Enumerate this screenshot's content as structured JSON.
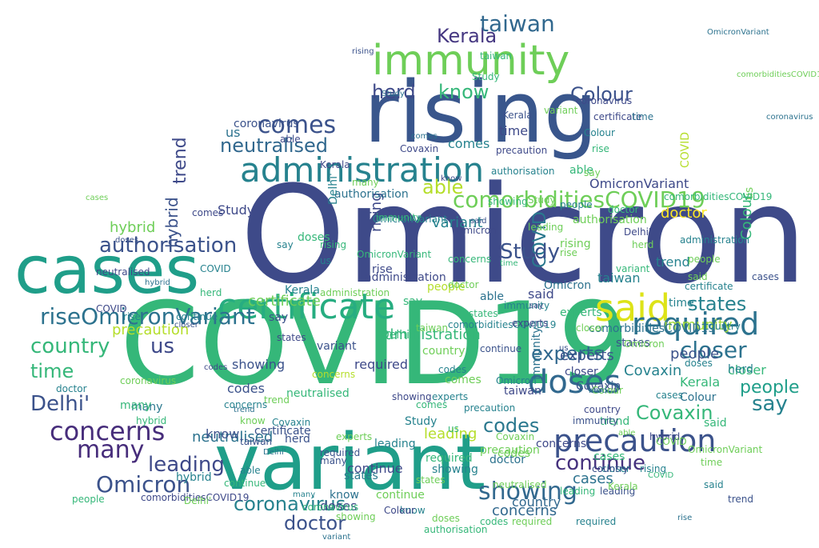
{
  "words": [
    {
      "text": "Omicron",
      "color": "#3e4a89"
    },
    {
      "text": "COVID19",
      "color": "#35b779"
    },
    {
      "text": "variant",
      "color": "#1f9e89"
    },
    {
      "text": "rising",
      "color": "#39568c"
    },
    {
      "text": "cases",
      "color": "#1f9e89"
    },
    {
      "text": "immunity",
      "color": "#6ece58"
    },
    {
      "text": "administration",
      "color": "#26828e"
    },
    {
      "text": "certificate",
      "color": "#27ad81"
    },
    {
      "text": "said",
      "color": "#dde318"
    },
    {
      "text": "precaution",
      "color": "#3b528b"
    },
    {
      "text": "required",
      "color": "#2c728e"
    },
    {
      "text": "doses",
      "color": "#31688e"
    },
    {
      "text": "closer",
      "color": "#2c728e"
    },
    {
      "text": "comorbiditiesCOVID19",
      "color": "#6ece58"
    },
    {
      "text": "riseOmicronVariant",
      "color": "#2c728e"
    },
    {
      "text": "authorisation",
      "color": "#3b528b"
    },
    {
      "text": "neutralised",
      "color": "#31688e"
    },
    {
      "text": "comes",
      "color": "#3b528b"
    },
    {
      "text": "herd",
      "color": "#3e4989"
    },
    {
      "text": "know",
      "color": "#35b779"
    },
    {
      "text": "Kerala",
      "color": "#453781"
    },
    {
      "text": "taiwan",
      "color": "#31688e"
    },
    {
      "text": "Colour",
      "color": "#3b528b"
    },
    {
      "text": "concerns",
      "color": "#472d7b"
    },
    {
      "text": "Delhi'",
      "color": "#3b528b"
    },
    {
      "text": "many",
      "color": "#472d7b"
    },
    {
      "text": "leading",
      "color": "#3e4989"
    },
    {
      "text": "Omicron",
      "color": "#3b528b"
    },
    {
      "text": "coronavirus",
      "color": "#26828e"
    },
    {
      "text": "doctor",
      "color": "#3b528b"
    },
    {
      "text": "showing",
      "color": "#31688e"
    },
    {
      "text": "continue",
      "color": "#46327e"
    },
    {
      "text": "Covaxin",
      "color": "#35b779"
    },
    {
      "text": "say",
      "color": "#26828e"
    },
    {
      "text": "people",
      "color": "#1f9e89"
    },
    {
      "text": "states",
      "color": "#26828e"
    },
    {
      "text": "experts",
      "color": "#31688e"
    },
    {
      "text": "country",
      "color": "#35b779"
    },
    {
      "text": "time",
      "color": "#35b779"
    },
    {
      "text": "codes",
      "color": "#2a788e"
    },
    {
      "text": "trend",
      "color": "#3e4989"
    },
    {
      "text": "COVID",
      "color": "#2a788e"
    },
    {
      "text": "able",
      "color": "#b5de2b"
    },
    {
      "text": "hybrid",
      "color": "#3b528b"
    },
    {
      "text": "us",
      "color": "#3e4989"
    },
    {
      "text": "Study",
      "color": "#3b528b"
    },
    {
      "text": "precaution",
      "color": "#b5de2b"
    },
    {
      "text": "neutralised",
      "color": "#2c728e"
    },
    {
      "text": "immunity",
      "color": "#a0da39"
    },
    {
      "text": "concerns",
      "color": "#31688e"
    },
    {
      "text": "Covaxin",
      "color": "#26828e"
    },
    {
      "text": "experts",
      "color": "#3b528b"
    },
    {
      "text": "cases",
      "color": "#2c728e"
    },
    {
      "text": "administration",
      "color": "#35b779"
    },
    {
      "text": "certificate",
      "color": "#6ece58"
    },
    {
      "text": "comorbiditiesCOVID19",
      "color": "#2c728e"
    },
    {
      "text": "OmicronVariant",
      "color": "#3e4989"
    },
    {
      "text": "authorisation",
      "color": "#6ece58"
    },
    {
      "text": "required",
      "color": "#3e4989"
    },
    {
      "text": "showing",
      "color": "#3b528b"
    },
    {
      "text": "taiwan",
      "color": "#26828e"
    },
    {
      "text": "Kerala",
      "color": "#35b779"
    },
    {
      "text": "leading",
      "color": "#b5de2b"
    },
    {
      "text": "continue",
      "color": "#3e4989"
    },
    {
      "text": "country",
      "color": "#31688e"
    },
    {
      "text": "Colour",
      "color": "#35b779"
    },
    {
      "text": "people",
      "color": "#3b528b"
    },
    {
      "text": "doctor",
      "color": "#fde725"
    },
    {
      "text": "variant",
      "color": "#26828e"
    },
    {
      "text": "rising",
      "color": "#3e4989"
    },
    {
      "text": "hybrid",
      "color": "#6ece58"
    },
    {
      "text": "states",
      "color": "#2a788e"
    },
    {
      "text": "closer",
      "color": "#35b779"
    },
    {
      "text": "doses",
      "color": "#3e4989"
    },
    {
      "text": "Delhi'",
      "color": "#35b779"
    },
    {
      "text": "many",
      "color": "#2a788e"
    },
    {
      "text": "codes",
      "color": "#3b528b"
    },
    {
      "text": "trend",
      "color": "#26828e"
    },
    {
      "text": "Study",
      "color": "#3e4989"
    },
    {
      "text": "said",
      "color": "#3e4989"
    },
    {
      "text": "know",
      "color": "#3b528b"
    },
    {
      "text": "comes",
      "color": "#26828e"
    },
    {
      "text": "time",
      "color": "#3e4989"
    },
    {
      "text": "us",
      "color": "#2c728e"
    },
    {
      "text": "say",
      "color": "#3b528b"
    },
    {
      "text": "herd",
      "color": "#26828e"
    },
    {
      "text": "able",
      "color": "#35b779"
    },
    {
      "text": "COVID",
      "color": "#b5de2b"
    },
    {
      "text": "rise",
      "color": "#3e4989"
    },
    {
      "text": "coronavirus",
      "color": "#3b528b"
    },
    {
      "text": "neutralised",
      "color": "#35b779"
    },
    {
      "text": "authorisation",
      "color": "#2c728e"
    },
    {
      "text": "precaution",
      "color": "#6ece58"
    },
    {
      "text": "concerns",
      "color": "#3e4989"
    },
    {
      "text": "immunity",
      "color": "#2c728e"
    },
    {
      "text": "experts",
      "color": "#35b779"
    },
    {
      "text": "Omicron",
      "color": "#2c728e"
    },
    {
      "text": "administration",
      "color": "#3e4989"
    },
    {
      "text": "Covaxin",
      "color": "#3b528b"
    },
    {
      "text": "leading",
      "color": "#26828e"
    },
    {
      "text": "required",
      "color": "#35b779"
    },
    {
      "text": "certificate",
      "color": "#3b528b"
    },
    {
      "text": "continue",
      "color": "#6ece58"
    },
    {
      "text": "showing",
      "color": "#26828e"
    },
    {
      "text": "country",
      "color": "#6ece58"
    },
    {
      "text": "taiwan",
      "color": "#3e4989"
    },
    {
      "text": "people",
      "color": "#b5de2b"
    },
    {
      "text": "Colour",
      "color": "#2c728e"
    },
    {
      "text": "Kerala",
      "color": "#26828e"
    },
    {
      "text": "doctor",
      "color": "#2c728e"
    },
    {
      "text": "states",
      "color": "#3b528b"
    },
    {
      "text": "cases",
      "color": "#35b779"
    },
    {
      "text": "hybrid",
      "color": "#26828e"
    },
    {
      "text": "doses",
      "color": "#35b779"
    },
    {
      "text": "closer",
      "color": "#3e4989"
    },
    {
      "text": "codes",
      "color": "#6ece58"
    },
    {
      "text": "trend",
      "color": "#35b779"
    },
    {
      "text": "many",
      "color": "#35b779"
    },
    {
      "text": "Delhi'",
      "color": "#26828e"
    },
    {
      "text": "rising",
      "color": "#6ece58"
    },
    {
      "text": "variant",
      "color": "#3b528b"
    },
    {
      "text": "Study",
      "color": "#26828e"
    },
    {
      "text": "comes",
      "color": "#6ece58"
    },
    {
      "text": "know",
      "color": "#2c728e"
    },
    {
      "text": "said",
      "color": "#35b779"
    },
    {
      "text": "time",
      "color": "#26828e"
    },
    {
      "text": "say",
      "color": "#35b779"
    },
    {
      "text": "us",
      "color": "#6ece58"
    },
    {
      "text": "herd",
      "color": "#3b528b"
    },
    {
      "text": "able",
      "color": "#2c728e"
    },
    {
      "text": "COVID",
      "color": "#3e4989"
    },
    {
      "text": "rise",
      "color": "#26828e"
    },
    {
      "text": "OmicronVariant",
      "color": "#26828e"
    },
    {
      "text": "comorbiditiesCOVID19",
      "color": "#3e4989"
    },
    {
      "text": "coronavirus",
      "color": "#35b779"
    },
    {
      "text": "authorisation",
      "color": "#26828e"
    },
    {
      "text": "neutralised",
      "color": "#6ece58"
    },
    {
      "text": "precaution",
      "color": "#3e4989"
    },
    {
      "text": "administration",
      "color": "#26828e"
    },
    {
      "text": "certificate",
      "color": "#26828e"
    },
    {
      "text": "immunity",
      "color": "#3b528b"
    },
    {
      "text": "concerns",
      "color": "#b5de2b"
    },
    {
      "text": "experts",
      "color": "#26828e"
    },
    {
      "text": "Covaxin",
      "color": "#6ece58"
    },
    {
      "text": "Omicron",
      "color": "#6ece58"
    },
    {
      "text": "required",
      "color": "#26828e"
    },
    {
      "text": "leading",
      "color": "#3b528b"
    },
    {
      "text": "continue",
      "color": "#35b779"
    },
    {
      "text": "showing",
      "color": "#6ece58"
    },
    {
      "text": "country",
      "color": "#3e4989"
    },
    {
      "text": "Kerala",
      "color": "#3b528b"
    },
    {
      "text": "taiwan",
      "color": "#35b779"
    },
    {
      "text": "people",
      "color": "#26828e"
    },
    {
      "text": "Colour",
      "color": "#6ece58"
    },
    {
      "text": "doctor",
      "color": "#35b779"
    },
    {
      "text": "states",
      "color": "#6ece58"
    },
    {
      "text": "cases",
      "color": "#3b528b"
    },
    {
      "text": "doses",
      "color": "#26828e"
    },
    {
      "text": "hybrid",
      "color": "#3e4989"
    },
    {
      "text": "closer",
      "color": "#26828e"
    },
    {
      "text": "codes",
      "color": "#26828e"
    },
    {
      "text": "trend",
      "color": "#6ece58"
    },
    {
      "text": "Delhi'",
      "color": "#6ece58"
    },
    {
      "text": "many",
      "color": "#3b528b"
    },
    {
      "text": "variant",
      "color": "#35b779"
    },
    {
      "text": "rising",
      "color": "#26828e"
    },
    {
      "text": "Study",
      "color": "#35b779"
    },
    {
      "text": "comes",
      "color": "#35b779"
    },
    {
      "text": "know",
      "color": "#6ece58"
    },
    {
      "text": "said",
      "color": "#6ece58"
    },
    {
      "text": "time",
      "color": "#6ece58"
    },
    {
      "text": "say",
      "color": "#6ece58"
    },
    {
      "text": "us",
      "color": "#26828e"
    },
    {
      "text": "herd",
      "color": "#6ece58"
    },
    {
      "text": "able",
      "color": "#3e4989"
    },
    {
      "text": "COVID",
      "color": "#26828e"
    },
    {
      "text": "rise",
      "color": "#6ece58"
    },
    {
      "text": "OmicronVariant",
      "color": "#35b779"
    },
    {
      "text": "comorbiditiesCOVID19",
      "color": "#35b779"
    },
    {
      "text": "coronavirus",
      "color": "#6ece58"
    },
    {
      "text": "authorisation",
      "color": "#35b779"
    },
    {
      "text": "neutralised",
      "color": "#3e4989"
    },
    {
      "text": "precaution",
      "color": "#26828e"
    },
    {
      "text": "administration",
      "color": "#6ece58"
    },
    {
      "text": "certificate",
      "color": "#3e4989"
    },
    {
      "text": "immunity",
      "color": "#26828e"
    },
    {
      "text": "concerns",
      "color": "#26828e"
    },
    {
      "text": "experts",
      "color": "#6ece58"
    },
    {
      "text": "Covaxin",
      "color": "#3e4989"
    },
    {
      "text": "Omicron",
      "color": "#26828e"
    },
    {
      "text": "required",
      "color": "#6ece58"
    },
    {
      "text": "leading",
      "color": "#35b779"
    },
    {
      "text": "continue",
      "color": "#26828e"
    },
    {
      "text": "showing",
      "color": "#35b779"
    },
    {
      "text": "country",
      "color": "#26828e"
    },
    {
      "text": "Kerala",
      "color": "#6ece58"
    },
    {
      "text": "taiwan",
      "color": "#6ece58"
    },
    {
      "text": "people",
      "color": "#35b779"
    },
    {
      "text": "Colour",
      "color": "#26828e"
    },
    {
      "text": "doctor",
      "color": "#26828e"
    },
    {
      "text": "states",
      "color": "#35b779"
    },
    {
      "text": "cases",
      "color": "#26828e"
    },
    {
      "text": "doses",
      "color": "#6ece58"
    },
    {
      "text": "hybrid",
      "color": "#35b779"
    },
    {
      "text": "closer",
      "color": "#6ece58"
    },
    {
      "text": "codes",
      "color": "#35b779"
    },
    {
      "text": "trend",
      "color": "#3b528b"
    },
    {
      "text": "Delhi'",
      "color": "#3e4989"
    },
    {
      "text": "many",
      "color": "#6ece58"
    },
    {
      "text": "variant",
      "color": "#6ece58"
    },
    {
      "text": "rising",
      "color": "#35b779"
    },
    {
      "text": "Study",
      "color": "#6ece58"
    },
    {
      "text": "comes",
      "color": "#3e4989"
    },
    {
      "text": "know",
      "color": "#26828e"
    },
    {
      "text": "said",
      "color": "#26828e"
    },
    {
      "text": "time",
      "color": "#2c728e"
    },
    {
      "text": "say",
      "color": "#26828e"
    },
    {
      "text": "us",
      "color": "#35b779"
    },
    {
      "text": "herd",
      "color": "#35b779"
    },
    {
      "text": "able",
      "color": "#26828e"
    },
    {
      "text": "COVID",
      "color": "#6ece58"
    },
    {
      "text": "rise",
      "color": "#35b779"
    },
    {
      "text": "OmicronVariant",
      "color": "#6ece58"
    },
    {
      "text": "comorbiditiesCOVID19",
      "color": "#26828e"
    },
    {
      "text": "coronavirus",
      "color": "#3e4989"
    },
    {
      "text": "Omicron",
      "color": "#3e4989"
    },
    {
      "text": "Covaxin",
      "color": "#26828e"
    },
    {
      "text": "experts",
      "color": "#3e4989"
    },
    {
      "text": "immunity",
      "color": "#35b779"
    },
    {
      "text": "concerns",
      "color": "#35b779"
    },
    {
      "text": "required",
      "color": "#3b528b"
    },
    {
      "text": "leading",
      "color": "#6ece58"
    },
    {
      "text": "continue",
      "color": "#3b528b"
    },
    {
      "text": "showing",
      "color": "#3e4989"
    },
    {
      "text": "country",
      "color": "#3b528b"
    },
    {
      "text": "Kerala",
      "color": "#3e4989"
    },
    {
      "text": "taiwan",
      "color": "#3b528b"
    },
    {
      "text": "people",
      "color": "#6ece58"
    },
    {
      "text": "Colour",
      "color": "#3e4989"
    },
    {
      "text": "doctor",
      "color": "#6ece58"
    },
    {
      "text": "states",
      "color": "#3e4989"
    },
    {
      "text": "cases",
      "color": "#6ece58"
    },
    {
      "text": "doses",
      "color": "#3b528b"
    },
    {
      "text": "hybrid",
      "color": "#2c728e"
    },
    {
      "text": "closer",
      "color": "#3b528b"
    },
    {
      "text": "codes",
      "color": "#3e4989"
    },
    {
      "text": "trend",
      "color": "#2c728e"
    },
    {
      "text": "Delhi'",
      "color": "#2c728e"
    },
    {
      "text": "many",
      "color": "#26828e"
    },
    {
      "text": "variant",
      "color": "#2c728e"
    },
    {
      "text": "rising",
      "color": "#3b528b"
    },
    {
      "text": "Study",
      "color": "#2c728e"
    },
    {
      "text": "comes",
      "color": "#2c728e"
    },
    {
      "text": "know",
      "color": "#3e4989"
    },
    {
      "text": "said",
      "color": "#3b528b"
    },
    {
      "text": "time",
      "color": "#35b779"
    },
    {
      "text": "say",
      "color": "#3e4989"
    },
    {
      "text": "us",
      "color": "#3b528b"
    },
    {
      "text": "herd",
      "color": "#2c728e"
    },
    {
      "text": "able",
      "color": "#6ece58"
    },
    {
      "text": "COVID",
      "color": "#35b779"
    },
    {
      "text": "rise",
      "color": "#2c728e"
    },
    {
      "text": "OmicronVariant",
      "color": "#2c728e"
    },
    {
      "text": "comorbiditiesCOVID19",
      "color": "#6ece58"
    },
    {
      "text": "coronavirus",
      "color": "#2c728e"
    }
  ]
}
